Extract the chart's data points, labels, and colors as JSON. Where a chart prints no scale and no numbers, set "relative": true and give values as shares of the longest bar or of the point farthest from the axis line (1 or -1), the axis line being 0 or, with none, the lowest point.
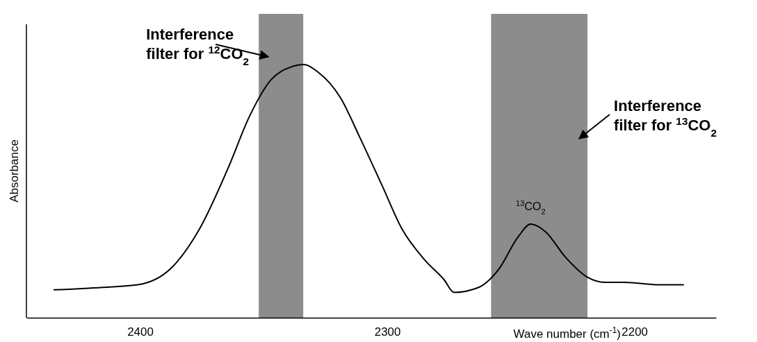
{
  "chart_data": {
    "type": "line",
    "relative": true,
    "xlabel": "Wave number (cm$^{-1}$)",
    "ylabel": "Absorbance",
    "xlim": [
      2446,
      2167
    ],
    "xticks": [
      2400,
      2300,
      2200
    ],
    "x": [
      2435,
      2415,
      2401,
      2387,
      2376,
      2364,
      2356,
      2347,
      2339,
      2334,
      2328,
      2319,
      2311,
      2302,
      2294,
      2285,
      2277,
      2273,
      2263,
      2255,
      2247,
      2242,
      2236,
      2228,
      2219,
      2212,
      2204,
      2190,
      2180
    ],
    "series": [
      {
        "color": "#000000",
        "values": [
          0.11,
          0.12,
          0.13,
          0.2,
          0.35,
          0.6,
          0.79,
          0.94,
          0.99,
          1,
          0.97,
          0.87,
          0.71,
          0.52,
          0.35,
          0.23,
          0.15,
          0.1,
          0.12,
          0.19,
          0.32,
          0.37,
          0.34,
          0.24,
          0.16,
          0.14,
          0.14,
          0.13,
          0.13
        ]
      }
    ],
    "bands": [
      {
        "axis": "x",
        "from": 2352,
        "to": 2334,
        "color": "#8c8c8c",
        "label": "Interference filter for $^{12}$CO$_{2}$"
      },
      {
        "axis": "x",
        "from": 2258,
        "to": 2219,
        "color": "#8c8c8c",
        "label": "Interference filter for $^{13}$CO$_{2}$"
      }
    ],
    "annotations": [
      {
        "text": "$^{13}$CO$_{2}$",
        "x": 2242,
        "y": 0.37
      }
    ],
    "grid": false
  }
}
